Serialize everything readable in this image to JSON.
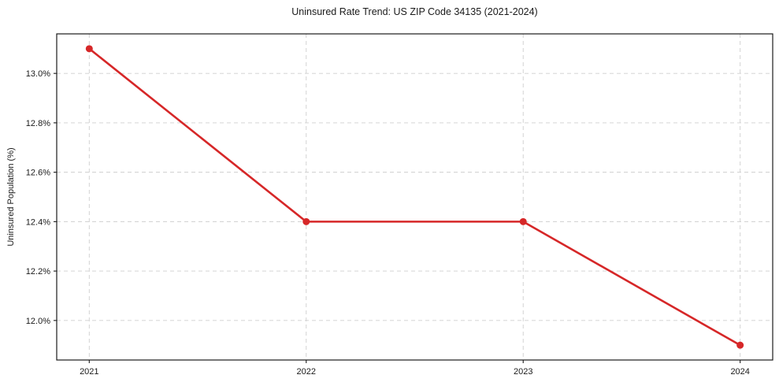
{
  "chart_data": {
    "type": "line",
    "title": "Uninsured Rate Trend: US ZIP Code 34135 (2021-2024)",
    "xlabel": "",
    "ylabel": "Uninsured Population (%)",
    "categories": [
      "2021",
      "2022",
      "2023",
      "2024"
    ],
    "x": [
      2021,
      2022,
      2023,
      2024
    ],
    "values": [
      13.1,
      12.4,
      12.4,
      11.9
    ],
    "y_ticks": [
      12.0,
      12.2,
      12.4,
      12.6,
      12.8,
      13.0
    ],
    "y_tick_labels": [
      "12.0%",
      "12.2%",
      "12.4%",
      "12.6%",
      "12.8%",
      "13.0%"
    ],
    "xlim": [
      2020.85,
      2024.15
    ],
    "ylim": [
      11.84,
      13.16
    ],
    "grid": true,
    "grid_style": "dashed",
    "grid_color": "#cfcfcf",
    "line_color": "#d62728",
    "marker": "circle",
    "legend": false,
    "spine_color": "#1a1a1a"
  }
}
